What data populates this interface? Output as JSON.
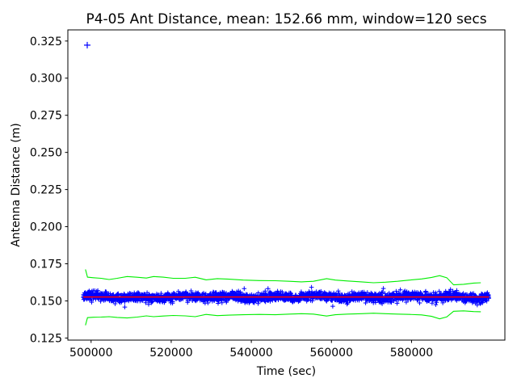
{
  "page": {
    "background": "#ffffff"
  },
  "chart_data": {
    "type": "scatter",
    "title": "P4-05 Ant Distance, mean: 152.66 mm, window=120 secs",
    "xlabel": "Time (sec)",
    "ylabel": "Antenna Distance (m)",
    "mean_mm": "152.66",
    "window_secs": "120",
    "grid": false,
    "legend": false,
    "axis_color": "#000000",
    "xlim": [
      494200,
      603300
    ],
    "ylim": [
      0.1236,
      0.3325
    ],
    "xticks": [
      {
        "value": 500000,
        "label": "500000"
      },
      {
        "value": 520000,
        "label": "520000"
      },
      {
        "value": 540000,
        "label": "540000"
      },
      {
        "value": 560000,
        "label": "560000"
      },
      {
        "value": 580000,
        "label": "580000"
      }
    ],
    "yticks": [
      {
        "value": 0.125,
        "label": "0.125"
      },
      {
        "value": 0.15,
        "label": "0.150"
      },
      {
        "value": 0.175,
        "label": "0.175"
      },
      {
        "value": 0.2,
        "label": "0.200"
      },
      {
        "value": 0.225,
        "label": "0.225"
      },
      {
        "value": 0.25,
        "label": "0.250"
      },
      {
        "value": 0.275,
        "label": "0.275"
      },
      {
        "value": 0.3,
        "label": "0.300"
      },
      {
        "value": 0.325,
        "label": "0.325"
      }
    ],
    "series": [
      {
        "name": "antenna-distance-measurements",
        "kind": "scatter-band",
        "marker": "+",
        "color": "#0000ff",
        "x_start": 498050,
        "x_end": 599300,
        "mean": 0.15266,
        "noise_sigma": 0.0024,
        "wobble": 0.0007,
        "n_points": 2300,
        "seed": 20,
        "arm": 2.8
      },
      {
        "name": "upper-envelope",
        "kind": "polyline",
        "color": "#00ee00",
        "width": 1.1,
        "points": [
          [
            498600,
            0.1712
          ],
          [
            499100,
            0.166
          ],
          [
            500600,
            0.1656
          ],
          [
            502500,
            0.1652
          ],
          [
            504500,
            0.1644
          ],
          [
            506500,
            0.1652
          ],
          [
            509000,
            0.1664
          ],
          [
            511500,
            0.1659
          ],
          [
            513800,
            0.1654
          ],
          [
            515600,
            0.1664
          ],
          [
            518000,
            0.166
          ],
          [
            520500,
            0.1652
          ],
          [
            523500,
            0.1652
          ],
          [
            526000,
            0.1659
          ],
          [
            528700,
            0.1642
          ],
          [
            531500,
            0.165
          ],
          [
            534500,
            0.1646
          ],
          [
            538000,
            0.164
          ],
          [
            542000,
            0.1637
          ],
          [
            546000,
            0.1636
          ],
          [
            549500,
            0.1632
          ],
          [
            552500,
            0.1628
          ],
          [
            555500,
            0.1632
          ],
          [
            558800,
            0.165
          ],
          [
            561000,
            0.164
          ],
          [
            564000,
            0.1634
          ],
          [
            567500,
            0.1628
          ],
          [
            570500,
            0.1622
          ],
          [
            573500,
            0.1626
          ],
          [
            576500,
            0.1632
          ],
          [
            579500,
            0.164
          ],
          [
            582500,
            0.1648
          ],
          [
            585000,
            0.1658
          ],
          [
            587000,
            0.167
          ],
          [
            588800,
            0.1656
          ],
          [
            590500,
            0.1608
          ],
          [
            593000,
            0.1612
          ],
          [
            595500,
            0.162
          ],
          [
            597300,
            0.1622
          ]
        ]
      },
      {
        "name": "lower-envelope",
        "kind": "polyline",
        "color": "#00ee00",
        "width": 1.1,
        "points": [
          [
            498600,
            0.1336
          ],
          [
            499100,
            0.1387
          ],
          [
            500600,
            0.139
          ],
          [
            502500,
            0.1391
          ],
          [
            504500,
            0.1394
          ],
          [
            506500,
            0.1389
          ],
          [
            509000,
            0.1385
          ],
          [
            511500,
            0.1391
          ],
          [
            513800,
            0.1399
          ],
          [
            515600,
            0.1394
          ],
          [
            518000,
            0.1398
          ],
          [
            520500,
            0.1402
          ],
          [
            523500,
            0.1399
          ],
          [
            526000,
            0.1394
          ],
          [
            528700,
            0.1409
          ],
          [
            531500,
            0.1401
          ],
          [
            534500,
            0.1404
          ],
          [
            538000,
            0.1407
          ],
          [
            542000,
            0.1409
          ],
          [
            546000,
            0.1407
          ],
          [
            549500,
            0.1411
          ],
          [
            552500,
            0.1414
          ],
          [
            555500,
            0.1411
          ],
          [
            558800,
            0.1398
          ],
          [
            561000,
            0.1407
          ],
          [
            564000,
            0.1411
          ],
          [
            567500,
            0.1414
          ],
          [
            570500,
            0.1417
          ],
          [
            573500,
            0.1414
          ],
          [
            576500,
            0.1411
          ],
          [
            579500,
            0.1409
          ],
          [
            582500,
            0.1406
          ],
          [
            585000,
            0.1396
          ],
          [
            587000,
            0.1379
          ],
          [
            588800,
            0.1392
          ],
          [
            590500,
            0.143
          ],
          [
            593000,
            0.1433
          ],
          [
            595500,
            0.1428
          ],
          [
            597300,
            0.1427
          ]
        ]
      },
      {
        "name": "rolling-mean",
        "kind": "hline",
        "color": "#ff0000",
        "width": 1.5,
        "y": 0.15266,
        "x_start": 498050,
        "x_end": 599300
      },
      {
        "name": "outlier-point",
        "kind": "scatter-points",
        "marker": "+",
        "color": "#0000ff",
        "arm": 4,
        "points": [
          [
            499050,
            0.3222
          ]
        ]
      }
    ]
  }
}
